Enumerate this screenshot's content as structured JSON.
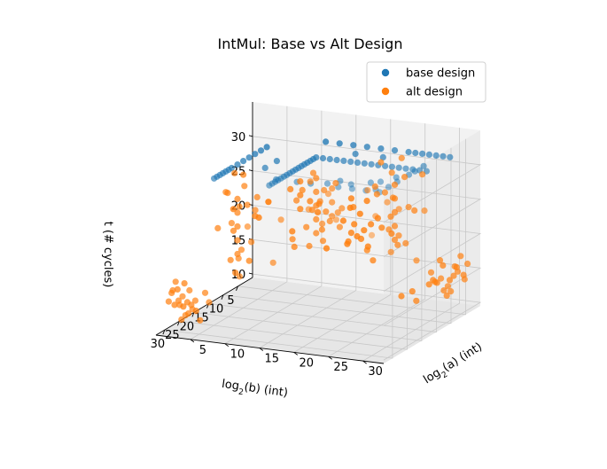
{
  "chart_data": {
    "type": "scatter",
    "projection": "3d",
    "title": "IntMul: Base vs Alt Design",
    "xlabel": "log2(a) (int)",
    "ylabel": "log2(b) (int)",
    "zlabel": "t (# cycles)",
    "xlabel_parts": {
      "base": "log",
      "sub": "2",
      "rest": "(a) (int)"
    },
    "ylabel_parts": {
      "base": "log",
      "sub": "2",
      "rest": "(b) (int)"
    },
    "xlim": [
      0,
      33
    ],
    "ylim": [
      0,
      33
    ],
    "zlim": [
      9.5,
      35
    ],
    "xticks": [
      5,
      10,
      15,
      20,
      25,
      30
    ],
    "yticks": [
      5,
      10,
      15,
      20,
      25,
      30
    ],
    "zticks": [
      10,
      15,
      20,
      25,
      30
    ],
    "grid": true,
    "legend_position": "top-right",
    "series": [
      {
        "name": "base design",
        "color": "#1f77b4",
        "points": [
          [
            32,
            32,
            34
          ],
          [
            30,
            32,
            34
          ],
          [
            31,
            31,
            34
          ],
          [
            28,
            32,
            34
          ],
          [
            32,
            29,
            34
          ],
          [
            26,
            32,
            34
          ],
          [
            32,
            26,
            34
          ],
          [
            22,
            32,
            34
          ],
          [
            32,
            22,
            34
          ],
          [
            20,
            32,
            34
          ],
          [
            32,
            20,
            34
          ],
          [
            17,
            32,
            34
          ],
          [
            32,
            17,
            34
          ],
          [
            24,
            31,
            34
          ],
          [
            31,
            24,
            34
          ],
          [
            29,
            28,
            34
          ],
          [
            27,
            30,
            34
          ],
          [
            30,
            27,
            34
          ],
          [
            25,
            29,
            34
          ],
          [
            32,
            16,
            33
          ],
          [
            31,
            16,
            33
          ],
          [
            30,
            16,
            33
          ],
          [
            29,
            16,
            33
          ],
          [
            28,
            16,
            33
          ],
          [
            27,
            16,
            33
          ],
          [
            26,
            16,
            33
          ],
          [
            25,
            16,
            33
          ],
          [
            24,
            16,
            33
          ],
          [
            23,
            16,
            33
          ],
          [
            22,
            16,
            33
          ],
          [
            21,
            16,
            33
          ],
          [
            20,
            16,
            33
          ],
          [
            19,
            16,
            33
          ],
          [
            18,
            16,
            33
          ],
          [
            17,
            16,
            33
          ],
          [
            16,
            16,
            33
          ],
          [
            16,
            32,
            33
          ],
          [
            16,
            31,
            33
          ],
          [
            16,
            30,
            33
          ],
          [
            16,
            29,
            33
          ],
          [
            16,
            28,
            33
          ],
          [
            16,
            27,
            33
          ],
          [
            16,
            26,
            33
          ],
          [
            16,
            25,
            33
          ],
          [
            16,
            24,
            33
          ],
          [
            16,
            23,
            33
          ],
          [
            16,
            22,
            33
          ],
          [
            16,
            21,
            33
          ],
          [
            16,
            20,
            33
          ],
          [
            16,
            19,
            33
          ],
          [
            16,
            18,
            33
          ],
          [
            16,
            17,
            33
          ],
          [
            8,
            32,
            33
          ],
          [
            8,
            31,
            33
          ],
          [
            8,
            30,
            33
          ],
          [
            8,
            29,
            33
          ],
          [
            8,
            28,
            33
          ],
          [
            8,
            27,
            33
          ],
          [
            8,
            26,
            33
          ],
          [
            8,
            24,
            33
          ],
          [
            8,
            22,
            33
          ],
          [
            8,
            20,
            33
          ],
          [
            8,
            18,
            33
          ],
          [
            8,
            16,
            33
          ],
          [
            8,
            14,
            33
          ],
          [
            32,
            8,
            33
          ],
          [
            31,
            8,
            33
          ],
          [
            30,
            8,
            33
          ],
          [
            29,
            8,
            33
          ],
          [
            28,
            8,
            33
          ],
          [
            27,
            8,
            33
          ],
          [
            26,
            8,
            33
          ],
          [
            24,
            8,
            33
          ],
          [
            22,
            8,
            33
          ],
          [
            20,
            8,
            33
          ],
          [
            18,
            8,
            33
          ],
          [
            16,
            8,
            33
          ],
          [
            14,
            8,
            33
          ],
          [
            20,
            12,
            33
          ],
          [
            12,
            20,
            33
          ],
          [
            24,
            12,
            33
          ],
          [
            12,
            24,
            33
          ]
        ]
      },
      {
        "name": "alt design",
        "color": "#ff7f0e",
        "points": [
          [
            2,
            30,
            14
          ],
          [
            3,
            31,
            15
          ],
          [
            1,
            29,
            13
          ],
          [
            2,
            28,
            16
          ],
          [
            3,
            30,
            12
          ],
          [
            4,
            29,
            14
          ],
          [
            2,
            31,
            17
          ],
          [
            1,
            30,
            15
          ],
          [
            3,
            28,
            13
          ],
          [
            4,
            31,
            16
          ],
          [
            2,
            29,
            11
          ],
          [
            3,
            32,
            14
          ],
          [
            1,
            28,
            15
          ],
          [
            4,
            30,
            13
          ],
          [
            2,
            32,
            16
          ],
          [
            3,
            29,
            12
          ],
          [
            1,
            31,
            14
          ],
          [
            5,
            28,
            15
          ],
          [
            2,
            27,
            13
          ],
          [
            6,
            29,
            14
          ],
          [
            1,
            26,
            12
          ],
          [
            2,
            24,
            11
          ],
          [
            3,
            25,
            10
          ],
          [
            30,
            2,
            14
          ],
          [
            31,
            3,
            15
          ],
          [
            29,
            1,
            13
          ],
          [
            28,
            2,
            16
          ],
          [
            30,
            3,
            12
          ],
          [
            29,
            4,
            14
          ],
          [
            31,
            2,
            17
          ],
          [
            30,
            1,
            15
          ],
          [
            28,
            3,
            13
          ],
          [
            31,
            4,
            16
          ],
          [
            29,
            2,
            11
          ],
          [
            32,
            3,
            14
          ],
          [
            28,
            1,
            15
          ],
          [
            30,
            4,
            13
          ],
          [
            32,
            2,
            16
          ],
          [
            29,
            3,
            12
          ],
          [
            31,
            1,
            14
          ],
          [
            28,
            5,
            15
          ],
          [
            27,
            2,
            13
          ],
          [
            29,
            6,
            14
          ],
          [
            26,
            1,
            12
          ],
          [
            24,
            2,
            11
          ],
          [
            25,
            3,
            10
          ],
          [
            22,
            1,
            9.8
          ],
          [
            16,
            2,
            18
          ],
          [
            16,
            3,
            20
          ],
          [
            17,
            2,
            19
          ],
          [
            15,
            3,
            17
          ],
          [
            16,
            1,
            21
          ],
          [
            18,
            2,
            20
          ],
          [
            17,
            3,
            18
          ],
          [
            15,
            2,
            22
          ],
          [
            16,
            4,
            19
          ],
          [
            14,
            2,
            20
          ],
          [
            18,
            3,
            17
          ],
          [
            19,
            2,
            21
          ],
          [
            17,
            1,
            23
          ],
          [
            16,
            5,
            18
          ],
          [
            20,
            3,
            20
          ],
          [
            12,
            3,
            16
          ],
          [
            21,
            2,
            19
          ],
          [
            16,
            16,
            22
          ],
          [
            16,
            16,
            24
          ],
          [
            16,
            16,
            26
          ],
          [
            16,
            16,
            28
          ],
          [
            16,
            16,
            30
          ],
          [
            15,
            17,
            23
          ],
          [
            17,
            15,
            25
          ],
          [
            14,
            18,
            27
          ],
          [
            18,
            14,
            29
          ],
          [
            16,
            17,
            31
          ],
          [
            17,
            16,
            21
          ],
          [
            15,
            16,
            20
          ],
          [
            16,
            15,
            26
          ],
          [
            18,
            16,
            24
          ],
          [
            14,
            16,
            28
          ],
          [
            16,
            14,
            22
          ],
          [
            16,
            18,
            30
          ],
          [
            17,
            17,
            27
          ],
          [
            15,
            15,
            25
          ],
          [
            19,
            15,
            23
          ],
          [
            13,
            17,
            21
          ],
          [
            18,
            18,
            29
          ],
          [
            12,
            14,
            19
          ],
          [
            20,
            18,
            26
          ],
          [
            8,
            24,
            20
          ],
          [
            8,
            24,
            22
          ],
          [
            8,
            24,
            24
          ],
          [
            8,
            24,
            26
          ],
          [
            8,
            24,
            28
          ],
          [
            9,
            25,
            21
          ],
          [
            7,
            23,
            23
          ],
          [
            8,
            26,
            25
          ],
          [
            9,
            23,
            27
          ],
          [
            7,
            25,
            29
          ],
          [
            8,
            22,
            31
          ],
          [
            9,
            24,
            30
          ],
          [
            7,
            24,
            19
          ],
          [
            8,
            25,
            32
          ],
          [
            10,
            24,
            22
          ],
          [
            8,
            20,
            18
          ],
          [
            6,
            26,
            24
          ],
          [
            10,
            22,
            28
          ],
          [
            9,
            26,
            20
          ],
          [
            7,
            21,
            26
          ],
          [
            8,
            28,
            30
          ],
          [
            8,
            18,
            24
          ],
          [
            11,
            25,
            27
          ],
          [
            24,
            8,
            20
          ],
          [
            24,
            8,
            22
          ],
          [
            24,
            8,
            24
          ],
          [
            24,
            8,
            26
          ],
          [
            24,
            8,
            28
          ],
          [
            25,
            9,
            21
          ],
          [
            23,
            7,
            23
          ],
          [
            26,
            8,
            25
          ],
          [
            23,
            9,
            27
          ],
          [
            25,
            7,
            29
          ],
          [
            22,
            8,
            31
          ],
          [
            24,
            9,
            30
          ],
          [
            24,
            7,
            19
          ],
          [
            25,
            8,
            32
          ],
          [
            24,
            10,
            22
          ],
          [
            20,
            8,
            18
          ],
          [
            26,
            6,
            24
          ],
          [
            22,
            10,
            28
          ],
          [
            26,
            9,
            20
          ],
          [
            21,
            7,
            26
          ],
          [
            28,
            8,
            30
          ],
          [
            18,
            8,
            24
          ],
          [
            25,
            11,
            27
          ],
          [
            12,
            12,
            24
          ],
          [
            12,
            12,
            26
          ],
          [
            12,
            12,
            28
          ],
          [
            13,
            11,
            25
          ],
          [
            11,
            13,
            27
          ],
          [
            20,
            20,
            26
          ],
          [
            20,
            20,
            28
          ],
          [
            21,
            19,
            27
          ],
          [
            19,
            21,
            25
          ],
          [
            20,
            20,
            30
          ],
          [
            28,
            16,
            27
          ],
          [
            16,
            28,
            27
          ],
          [
            28,
            24,
            28
          ],
          [
            24,
            28,
            28
          ],
          [
            30,
            12,
            26
          ],
          [
            12,
            30,
            26
          ],
          [
            20,
            28,
            29
          ],
          [
            28,
            20,
            29
          ],
          [
            4,
            16,
            24
          ],
          [
            16,
            4,
            24
          ],
          [
            10,
            28,
            18
          ],
          [
            28,
            10,
            18
          ],
          [
            14,
            26,
            20
          ],
          [
            26,
            14,
            20
          ],
          [
            6,
            12,
            22
          ],
          [
            12,
            6,
            22
          ],
          [
            22,
            26,
            31
          ],
          [
            26,
            22,
            31
          ],
          [
            30,
            30,
            27
          ],
          [
            4,
            4,
            22
          ],
          [
            6,
            20,
            16
          ],
          [
            20,
            6,
            16
          ],
          [
            10,
            10,
            20
          ]
        ]
      }
    ]
  }
}
